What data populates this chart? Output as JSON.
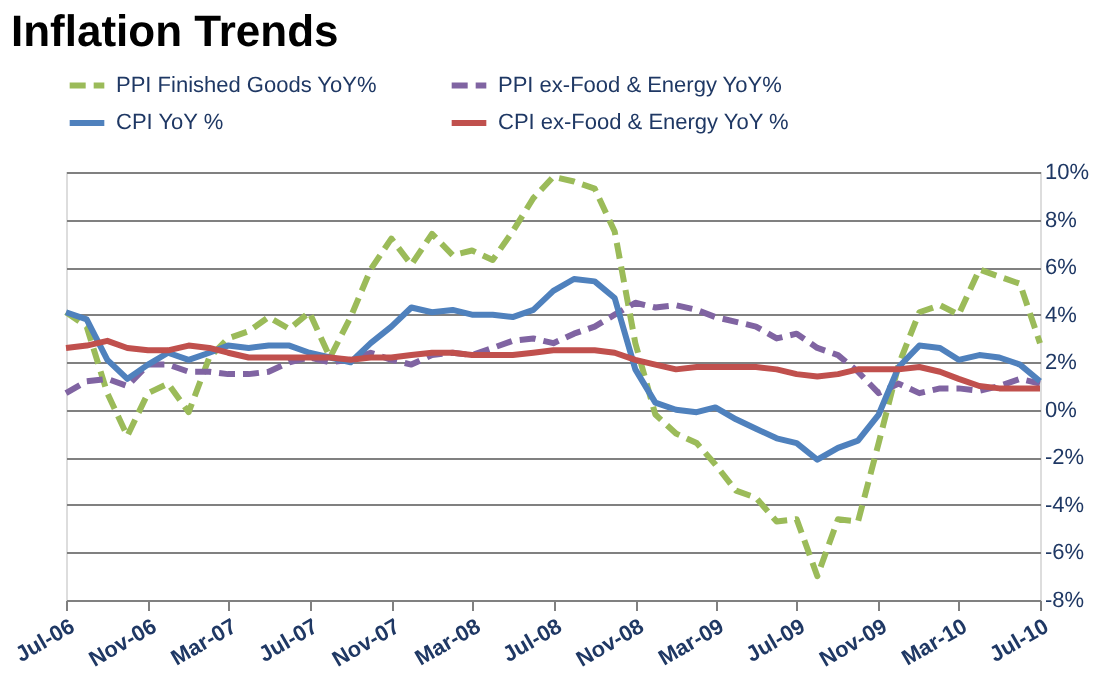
{
  "chart_data": {
    "type": "line",
    "title": "Inflation Trends",
    "x": [
      "2006-07",
      "2006-08",
      "2006-09",
      "2006-10",
      "2006-11",
      "2006-12",
      "2007-01",
      "2007-02",
      "2007-03",
      "2007-04",
      "2007-05",
      "2007-06",
      "2007-07",
      "2007-08",
      "2007-09",
      "2007-10",
      "2007-11",
      "2007-12",
      "2008-01",
      "2008-02",
      "2008-03",
      "2008-04",
      "2008-05",
      "2008-06",
      "2008-07",
      "2008-08",
      "2008-09",
      "2008-10",
      "2008-11",
      "2008-12",
      "2009-01",
      "2009-02",
      "2009-03",
      "2009-04",
      "2009-05",
      "2009-06",
      "2009-07",
      "2009-08",
      "2009-09",
      "2009-10",
      "2009-11",
      "2009-12",
      "2010-01",
      "2010-02",
      "2010-03",
      "2010-04",
      "2010-05",
      "2010-06",
      "2010-07"
    ],
    "series": [
      {
        "name": "PPI Finished Goods YoY%",
        "color": "#9bbb59",
        "line_style": "dashed",
        "values": [
          4.1,
          3.5,
          0.7,
          -1.1,
          0.7,
          1.1,
          -0.1,
          2.2,
          3.0,
          3.3,
          3.9,
          3.4,
          4.1,
          2.2,
          3.9,
          5.9,
          7.2,
          6.1,
          7.4,
          6.5,
          6.7,
          6.3,
          7.5,
          8.9,
          9.8,
          9.6,
          9.3,
          7.5,
          2.8,
          -0.2,
          -1.0,
          -1.4,
          -2.3,
          -3.4,
          -3.7,
          -4.7,
          -4.6,
          -7.0,
          -4.6,
          -4.7,
          -1.4,
          1.9,
          4.1,
          4.4,
          4.0,
          5.9,
          5.6,
          5.3,
          2.8
        ]
      },
      {
        "name": "PPI ex-Food & Energy YoY%",
        "color": "#8064a2",
        "line_style": "dashed",
        "values": [
          0.7,
          1.2,
          1.3,
          1.0,
          1.9,
          1.9,
          1.6,
          1.6,
          1.5,
          1.5,
          1.6,
          2.0,
          2.2,
          2.0,
          2.1,
          2.4,
          2.1,
          1.9,
          2.3,
          2.4,
          2.3,
          2.6,
          2.9,
          3.0,
          2.8,
          3.2,
          3.5,
          4.0,
          4.5,
          4.3,
          4.4,
          4.2,
          3.9,
          3.7,
          3.5,
          3.0,
          3.2,
          2.6,
          2.3,
          1.6,
          0.7,
          1.1,
          0.7,
          0.9,
          0.9,
          0.8,
          1.0,
          1.3,
          1.1
        ]
      },
      {
        "name": "CPI YoY %",
        "color": "#4f81bd",
        "line_style": "solid",
        "values": [
          4.1,
          3.8,
          2.1,
          1.3,
          1.9,
          2.4,
          2.1,
          2.4,
          2.7,
          2.6,
          2.7,
          2.7,
          2.4,
          2.2,
          2.0,
          2.8,
          3.5,
          4.3,
          4.1,
          4.2,
          4.0,
          4.0,
          3.9,
          4.2,
          5.0,
          5.5,
          5.4,
          4.7,
          1.7,
          0.3,
          0.0,
          -0.1,
          0.1,
          -0.4,
          -0.8,
          -1.2,
          -1.4,
          -2.1,
          -1.6,
          -1.3,
          -0.2,
          1.8,
          2.7,
          2.6,
          2.1,
          2.3,
          2.2,
          1.9,
          1.2
        ]
      },
      {
        "name": "CPI ex-Food & Energy YoY %",
        "color": "#c0504d",
        "line_style": "solid",
        "values": [
          2.6,
          2.7,
          2.9,
          2.6,
          2.5,
          2.5,
          2.7,
          2.6,
          2.4,
          2.2,
          2.2,
          2.2,
          2.2,
          2.2,
          2.1,
          2.2,
          2.2,
          2.3,
          2.4,
          2.4,
          2.3,
          2.3,
          2.3,
          2.4,
          2.5,
          2.5,
          2.5,
          2.4,
          2.1,
          1.9,
          1.7,
          1.8,
          1.8,
          1.8,
          1.8,
          1.7,
          1.5,
          1.4,
          1.5,
          1.7,
          1.7,
          1.7,
          1.8,
          1.6,
          1.3,
          1.0,
          0.9,
          0.9,
          0.9
        ]
      }
    ],
    "xlim": [
      "2006-07",
      "2010-07"
    ],
    "xticks": [
      {
        "value": "2006-07",
        "label": "Jul-06"
      },
      {
        "value": "2006-11",
        "label": "Nov-06"
      },
      {
        "value": "2007-03",
        "label": "Mar-07"
      },
      {
        "value": "2007-07",
        "label": "Jul-07"
      },
      {
        "value": "2007-11",
        "label": "Nov-07"
      },
      {
        "value": "2008-03",
        "label": "Mar-08"
      },
      {
        "value": "2008-07",
        "label": "Jul-08"
      },
      {
        "value": "2008-11",
        "label": "Nov-08"
      },
      {
        "value": "2009-03",
        "label": "Mar-09"
      },
      {
        "value": "2009-07",
        "label": "Jul-09"
      },
      {
        "value": "2009-11",
        "label": "Nov-09"
      },
      {
        "value": "2010-03",
        "label": "Mar-10"
      },
      {
        "value": "2010-07",
        "label": "Jul-10"
      }
    ],
    "ylim": [
      -8,
      10
    ],
    "yticks": [
      {
        "value": -8,
        "label": "-8%"
      },
      {
        "value": -6,
        "label": "-6%"
      },
      {
        "value": -4,
        "label": "-4%"
      },
      {
        "value": -2,
        "label": "-2%"
      },
      {
        "value": 0,
        "label": "0%"
      },
      {
        "value": 2,
        "label": "2%"
      },
      {
        "value": 4,
        "label": "4%"
      },
      {
        "value": 6,
        "label": "6%"
      },
      {
        "value": 8,
        "label": "8%"
      },
      {
        "value": 10,
        "label": "10%"
      }
    ],
    "grid": "y",
    "legend": "top",
    "marker": "none"
  }
}
